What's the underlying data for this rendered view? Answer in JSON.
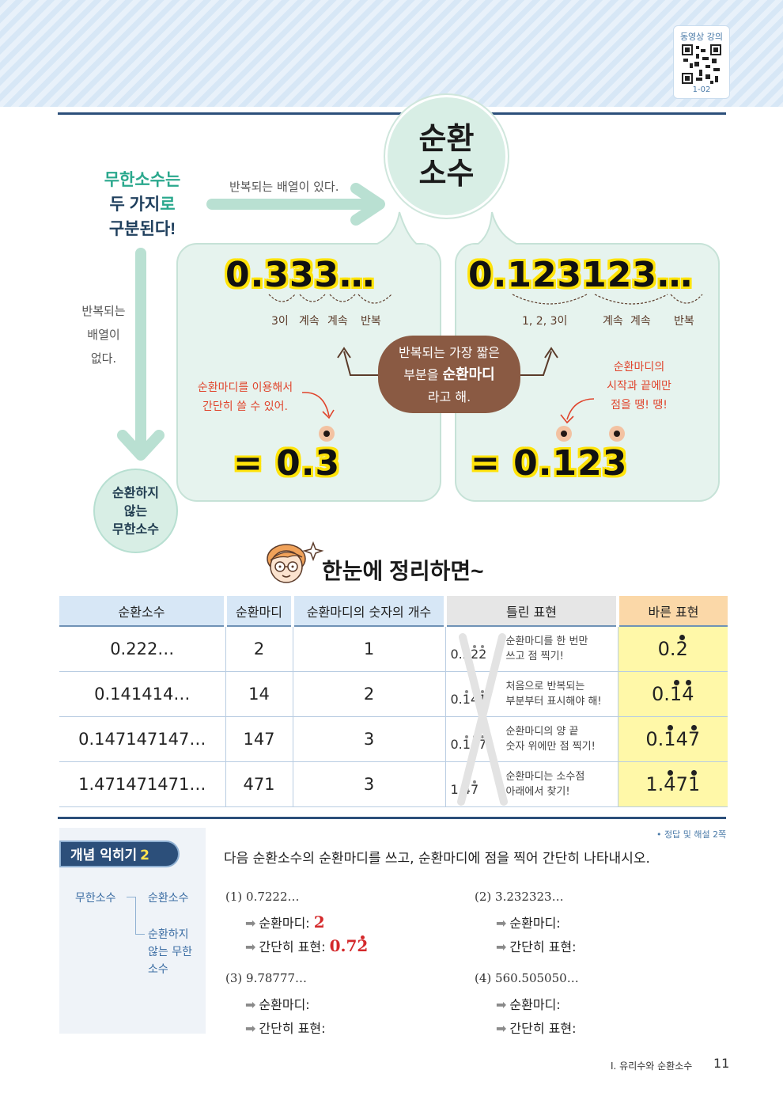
{
  "header": {
    "video_label": "동영상 강의",
    "qr_code_label": "1-02"
  },
  "concept": {
    "title_line1": "무한소수는",
    "title_line2a": "두 가지",
    "title_line2b": "로",
    "title_line3": "구분된다!",
    "arrow_top_label": "반복되는 배열이 있다.",
    "arrow_left_line1": "반복되는",
    "arrow_left_line2": "배열이",
    "arrow_left_line3": "없다.",
    "repeating_line1": "순환",
    "repeating_line2": "소수",
    "nonrepeating_line1": "순환하지",
    "nonrepeating_line2": "않는",
    "nonrepeating_line3": "무한소수"
  },
  "example1": {
    "number": "0.333…",
    "label_a": "3이",
    "label_b": "계속",
    "label_c": "계속",
    "label_d": "반복",
    "note_line1": "순환마디를 이용해서",
    "note_line2": "간단히 쓸 수 있어.",
    "result": "= 0.3"
  },
  "example2": {
    "number": "0.123123…",
    "label_a": "1, 2, 3이",
    "label_b": "계속",
    "label_c": "계속",
    "label_d": "반복",
    "note_line1": "순환마디의",
    "note_line2": "시작과 끝에만",
    "note_line3": "점을 땡! 땡!",
    "result": "= 0.123"
  },
  "center_note": {
    "line1": "반복되는 가장 짧은",
    "line2a": "부분을 ",
    "line2b": "순환마디",
    "line3": "라고 해."
  },
  "summary_title": "한눈에 정리하면~",
  "table": {
    "headers": [
      "순환소수",
      "순환마디",
      "순환마디의 숫자의 개수",
      "틀린 표현",
      "바른 표현"
    ],
    "rows": [
      {
        "decimal": "0.222…",
        "cycle": "2",
        "count": "1",
        "wrong_int": "0.",
        "wrong_digits": "222",
        "wrong_desc1": "순환마디를 한 번만",
        "wrong_desc2": "쓰고 점 찍기!",
        "right_int": "0.",
        "right_digits": "2"
      },
      {
        "decimal": "0.141414…",
        "cycle": "14",
        "count": "2",
        "wrong_int": "0.",
        "wrong_digits": "141",
        "wrong_desc1": "처음으로 반복되는",
        "wrong_desc2": "부분부터 표시해야 해!",
        "right_int": "0.",
        "right_digits": "14"
      },
      {
        "decimal": "0.147147147…",
        "cycle": "147",
        "count": "3",
        "wrong_int": "0.",
        "wrong_digits": "147",
        "wrong_desc1": "순환마디의 양 끝",
        "wrong_desc2": "숫자 위에만 점 찍기!",
        "right_int": "0.",
        "right_digits": "147"
      },
      {
        "decimal": "1.471471471…",
        "cycle": "471",
        "count": "3",
        "wrong_int": "1.",
        "wrong_digits": "47",
        "wrong_desc1": "순환마디는 소수점",
        "wrong_desc2": "아래에서 찾기!",
        "right_int": "1.",
        "right_digits": "471"
      }
    ]
  },
  "exercise": {
    "tag": "개념 익히기",
    "tag_num": "2",
    "answer_ref": "• 정답 및 해설  2쪽",
    "instruction": "다음 순환소수의 순환마디를 쓰고, 순환마디에 점을 찍어 간단히 나타내시오.",
    "tree_root": "무한소수",
    "tree_a": "순환소수",
    "tree_b_line1": "순환하지",
    "tree_b_line2": "않는 무한",
    "tree_b_line3": "소수",
    "cycle_label": "순환마디: ",
    "simple_label": "간단히 표현: ",
    "problems": [
      {
        "num": "(1)",
        "value": "0.7222…",
        "answer_cycle": "2",
        "answer_simple_int": "0.7",
        "answer_simple_dot": "2"
      },
      {
        "num": "(2)",
        "value": "3.232323…"
      },
      {
        "num": "(3)",
        "value": "9.78777…"
      },
      {
        "num": "(4)",
        "value": "560.505050…"
      }
    ]
  },
  "footer": {
    "section": "Ⅰ. 유리수와 순환소수",
    "page": "11"
  },
  "colors": {
    "accent_green": "#2aa88d",
    "navy": "#2c4f7a",
    "highlight_yellow": "#ffe30a",
    "answer_red": "#d4292b"
  }
}
